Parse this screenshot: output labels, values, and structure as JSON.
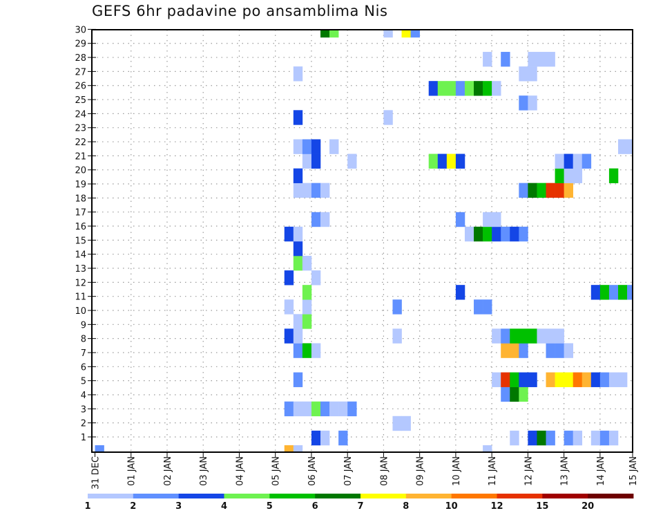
{
  "chart_data": {
    "type": "heatmap",
    "title": "GEFS 6hr padavine po ansamblima Nis",
    "xlabel": "",
    "ylabel": "",
    "x_unit": "6-hour step from 31 DEC 00Z",
    "x_tick_labels": [
      "31 DEC",
      "01 JAN",
      "02 JAN",
      "03 JAN",
      "04 JAN",
      "05 JAN",
      "06 JAN",
      "07 JAN",
      "08 JAN",
      "09 JAN",
      "10 JAN",
      "11 JAN",
      "12 JAN",
      "13 JAN",
      "14 JAN",
      "15 JAN"
    ],
    "y_tick_labels": [
      "1",
      "2",
      "3",
      "4",
      "5",
      "6",
      "7",
      "8",
      "9",
      "10",
      "11",
      "12",
      "13",
      "14",
      "15",
      "16",
      "17",
      "18",
      "19",
      "20",
      "21",
      "22",
      "23",
      "24",
      "25",
      "26",
      "27",
      "28",
      "29",
      "30"
    ],
    "grid": true,
    "legend_position": "bottom",
    "levels": [
      1,
      2,
      3,
      4,
      5,
      6,
      7,
      8,
      10,
      12,
      15,
      20
    ],
    "level_labels": [
      "1",
      "2",
      "3",
      "4",
      "5",
      "6",
      "7",
      "8",
      "10",
      "12",
      "15",
      "20"
    ],
    "colors": [
      "#b4c8ff",
      "#6090ff",
      "#1446e6",
      "#6ef250",
      "#00c000",
      "#007800",
      "#ffff00",
      "#ffb432",
      "#ff7800",
      "#e63200",
      "#a00000",
      "#6e0000"
    ],
    "cells_format": [
      "step",
      "member",
      "value_class_lower_bound"
    ],
    "cells": [
      [
        0,
        0,
        2
      ],
      [
        21,
        0,
        8
      ],
      [
        22,
        0,
        1
      ],
      [
        43,
        0,
        1
      ],
      [
        24,
        1,
        3
      ],
      [
        25,
        1,
        1
      ],
      [
        27,
        1,
        2
      ],
      [
        46,
        1,
        1
      ],
      [
        48,
        1,
        3
      ],
      [
        49,
        1,
        6
      ],
      [
        50,
        1,
        2
      ],
      [
        52,
        1,
        2
      ],
      [
        53,
        1,
        1
      ],
      [
        55,
        1,
        1
      ],
      [
        56,
        1,
        2
      ],
      [
        57,
        1,
        1
      ],
      [
        33,
        2,
        1
      ],
      [
        34,
        2,
        1
      ],
      [
        21,
        3,
        2
      ],
      [
        22,
        3,
        1
      ],
      [
        23,
        3,
        1
      ],
      [
        24,
        3,
        4
      ],
      [
        25,
        3,
        2
      ],
      [
        26,
        3,
        1
      ],
      [
        27,
        3,
        1
      ],
      [
        28,
        3,
        2
      ],
      [
        45,
        4,
        2
      ],
      [
        46,
        4,
        6
      ],
      [
        47,
        4,
        4
      ],
      [
        22,
        5,
        2
      ],
      [
        44,
        5,
        1
      ],
      [
        45,
        5,
        12
      ],
      [
        46,
        5,
        5
      ],
      [
        47,
        5,
        3
      ],
      [
        48,
        5,
        3
      ],
      [
        50,
        5,
        8
      ],
      [
        51,
        5,
        7
      ],
      [
        52,
        5,
        7
      ],
      [
        53,
        5,
        10
      ],
      [
        54,
        5,
        8
      ],
      [
        55,
        5,
        3
      ],
      [
        56,
        5,
        2
      ],
      [
        57,
        5,
        1
      ],
      [
        58,
        5,
        1
      ],
      [
        22,
        7,
        2
      ],
      [
        23,
        7,
        5
      ],
      [
        24,
        7,
        1
      ],
      [
        45,
        7,
        8
      ],
      [
        46,
        7,
        8
      ],
      [
        47,
        7,
        2
      ],
      [
        50,
        7,
        2
      ],
      [
        51,
        7,
        2
      ],
      [
        52,
        7,
        1
      ],
      [
        21,
        8,
        3
      ],
      [
        22,
        8,
        1
      ],
      [
        33,
        8,
        1
      ],
      [
        44,
        8,
        1
      ],
      [
        45,
        8,
        2
      ],
      [
        46,
        8,
        5
      ],
      [
        47,
        8,
        5
      ],
      [
        48,
        8,
        5
      ],
      [
        49,
        8,
        1
      ],
      [
        50,
        8,
        1
      ],
      [
        51,
        8,
        1
      ],
      [
        22,
        9,
        1
      ],
      [
        23,
        9,
        4
      ],
      [
        21,
        10,
        1
      ],
      [
        23,
        10,
        1
      ],
      [
        33,
        10,
        2
      ],
      [
        42,
        10,
        2
      ],
      [
        43,
        10,
        2
      ],
      [
        23,
        11,
        4
      ],
      [
        40,
        11,
        3
      ],
      [
        55,
        11,
        3
      ],
      [
        56,
        11,
        5
      ],
      [
        57,
        11,
        2
      ],
      [
        58,
        11,
        5
      ],
      [
        59,
        11,
        2
      ],
      [
        21,
        12,
        3
      ],
      [
        24,
        12,
        1
      ],
      [
        22,
        13,
        4
      ],
      [
        23,
        13,
        1
      ],
      [
        22,
        14,
        3
      ],
      [
        21,
        15,
        3
      ],
      [
        22,
        15,
        1
      ],
      [
        41,
        15,
        1
      ],
      [
        42,
        15,
        6
      ],
      [
        43,
        15,
        5
      ],
      [
        44,
        15,
        3
      ],
      [
        45,
        15,
        2
      ],
      [
        46,
        15,
        3
      ],
      [
        47,
        15,
        2
      ],
      [
        24,
        16,
        2
      ],
      [
        25,
        16,
        1
      ],
      [
        40,
        16,
        2
      ],
      [
        43,
        16,
        1
      ],
      [
        44,
        16,
        1
      ],
      [
        22,
        18,
        1
      ],
      [
        23,
        18,
        1
      ],
      [
        24,
        18,
        2
      ],
      [
        25,
        18,
        1
      ],
      [
        47,
        18,
        2
      ],
      [
        48,
        18,
        6
      ],
      [
        49,
        18,
        5
      ],
      [
        50,
        18,
        12
      ],
      [
        51,
        18,
        12
      ],
      [
        52,
        18,
        8
      ],
      [
        22,
        19,
        3
      ],
      [
        51,
        19,
        5
      ],
      [
        52,
        19,
        1
      ],
      [
        53,
        19,
        1
      ],
      [
        57,
        19,
        5
      ],
      [
        23,
        20,
        1
      ],
      [
        24,
        20,
        3
      ],
      [
        28,
        20,
        1
      ],
      [
        37,
        20,
        4
      ],
      [
        38,
        20,
        3
      ],
      [
        39,
        20,
        7
      ],
      [
        40,
        20,
        3
      ],
      [
        51,
        20,
        1
      ],
      [
        52,
        20,
        3
      ],
      [
        53,
        20,
        1
      ],
      [
        54,
        20,
        2
      ],
      [
        22,
        21,
        1
      ],
      [
        23,
        21,
        2
      ],
      [
        24,
        21,
        3
      ],
      [
        26,
        21,
        1
      ],
      [
        58,
        21,
        1
      ],
      [
        59,
        21,
        1
      ],
      [
        22,
        23,
        3
      ],
      [
        32,
        23,
        1
      ],
      [
        47,
        24,
        2
      ],
      [
        48,
        24,
        1
      ],
      [
        37,
        25,
        3
      ],
      [
        38,
        25,
        4
      ],
      [
        39,
        25,
        4
      ],
      [
        40,
        25,
        2
      ],
      [
        41,
        25,
        4
      ],
      [
        42,
        25,
        6
      ],
      [
        43,
        25,
        5
      ],
      [
        44,
        25,
        1
      ],
      [
        22,
        26,
        1
      ],
      [
        47,
        26,
        1
      ],
      [
        48,
        26,
        1
      ],
      [
        43,
        27,
        1
      ],
      [
        45,
        27,
        2
      ],
      [
        48,
        27,
        1
      ],
      [
        49,
        27,
        1
      ],
      [
        50,
        27,
        1
      ],
      [
        25,
        29,
        6
      ],
      [
        26,
        29,
        4
      ],
      [
        32,
        29,
        1
      ],
      [
        34,
        29,
        7
      ],
      [
        35,
        29,
        2
      ]
    ]
  }
}
